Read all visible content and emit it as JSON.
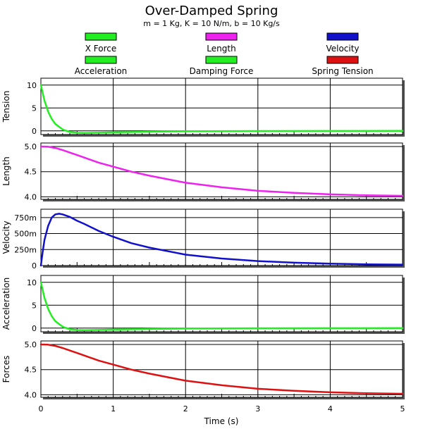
{
  "chart_data": {
    "type": "line",
    "title": "Over-Damped Spring",
    "subtitle": "m = 1 Kg, K = 10 N/m, b = 10 Kg/s",
    "xlabel": "Time (s)",
    "xlim": [
      0,
      5
    ],
    "x_ticks": [
      "0",
      "1",
      "2",
      "3",
      "4",
      "5"
    ],
    "grid": true,
    "legend_placement": "top",
    "legend": [
      {
        "name": "X Force",
        "color": "#22ee22"
      },
      {
        "name": "Length",
        "color": "#ee22ee"
      },
      {
        "name": "Velocity",
        "color": "#1111cc"
      },
      {
        "name": "Acceleration",
        "color": "#22ee22"
      },
      {
        "name": "Damping Force",
        "color": "#22ee22"
      },
      {
        "name": "Spring Tension",
        "color": "#dd1111"
      }
    ],
    "panels": [
      {
        "ylabel": "Tension",
        "ylim": [
          -0.8,
          11.5
        ],
        "y_ticks": [
          {
            "v": 10,
            "label": "10"
          },
          {
            "v": 5,
            "label": "5"
          },
          {
            "v": 0,
            "label": "0"
          }
        ],
        "color": "#22ee22",
        "x": [
          0,
          0.05,
          0.1,
          0.15,
          0.2,
          0.3,
          0.4,
          0.5,
          0.6,
          0.8,
          1.0,
          1.5,
          2.0,
          3.0,
          4.0,
          5.0
        ],
        "y": [
          10,
          6.6,
          4.2,
          2.6,
          1.5,
          0.3,
          -0.25,
          -0.42,
          -0.46,
          -0.4,
          -0.32,
          -0.18,
          -0.1,
          -0.03,
          -0.01,
          0
        ]
      },
      {
        "ylabel": "Length",
        "ylim": [
          3.95,
          5.07
        ],
        "y_ticks": [
          {
            "v": 5.0,
            "label": "5.0"
          },
          {
            "v": 4.5,
            "label": "4.5"
          },
          {
            "v": 4.0,
            "label": "4.0"
          }
        ],
        "color": "#ee22ee",
        "x": [
          0,
          0.1,
          0.2,
          0.3,
          0.4,
          0.5,
          0.6,
          0.8,
          1.0,
          1.25,
          1.5,
          1.75,
          2.0,
          2.5,
          3.0,
          3.5,
          4.0,
          4.5,
          5.0
        ],
        "y": [
          5.0,
          4.996,
          4.97,
          4.93,
          4.88,
          4.83,
          4.78,
          4.68,
          4.6,
          4.5,
          4.42,
          4.35,
          4.28,
          4.19,
          4.12,
          4.08,
          4.05,
          4.03,
          4.02
        ]
      },
      {
        "ylabel": "Velocity",
        "ylim": [
          0,
          0.88
        ],
        "y_ticks": [
          {
            "v": 0.75,
            "label": "750m"
          },
          {
            "v": 0.5,
            "label": "500m"
          },
          {
            "v": 0.25,
            "label": "250m"
          },
          {
            "v": 0,
            "label": "0"
          }
        ],
        "color": "#1111cc",
        "x": [
          0,
          0.02,
          0.05,
          0.1,
          0.15,
          0.2,
          0.25,
          0.3,
          0.4,
          0.5,
          0.6,
          0.8,
          1.0,
          1.25,
          1.5,
          2.0,
          2.5,
          3.0,
          3.5,
          4.0,
          4.5,
          5.0
        ],
        "y": [
          0,
          0.18,
          0.4,
          0.62,
          0.75,
          0.8,
          0.81,
          0.8,
          0.76,
          0.7,
          0.65,
          0.54,
          0.45,
          0.35,
          0.28,
          0.17,
          0.11,
          0.07,
          0.045,
          0.03,
          0.02,
          0.015
        ]
      },
      {
        "ylabel": "Acceleration",
        "ylim": [
          -0.8,
          11.5
        ],
        "y_ticks": [
          {
            "v": 10,
            "label": "10"
          },
          {
            "v": 5,
            "label": "5"
          },
          {
            "v": 0,
            "label": "0"
          }
        ],
        "color": "#22ee22",
        "x": [
          0,
          0.05,
          0.1,
          0.15,
          0.2,
          0.3,
          0.4,
          0.5,
          0.6,
          0.8,
          1.0,
          1.5,
          2.0,
          3.0,
          4.0,
          5.0
        ],
        "y": [
          10,
          6.6,
          4.2,
          2.6,
          1.5,
          0.3,
          -0.25,
          -0.42,
          -0.46,
          -0.4,
          -0.32,
          -0.18,
          -0.1,
          -0.03,
          -0.01,
          0
        ]
      },
      {
        "ylabel": "Forces",
        "ylim": [
          3.95,
          5.07
        ],
        "y_ticks": [
          {
            "v": 5.0,
            "label": "5.0"
          },
          {
            "v": 4.5,
            "label": "4.5"
          },
          {
            "v": 4.0,
            "label": "4.0"
          }
        ],
        "color": "#dd1111",
        "x": [
          0,
          0.1,
          0.2,
          0.3,
          0.4,
          0.5,
          0.6,
          0.8,
          1.0,
          1.25,
          1.5,
          1.75,
          2.0,
          2.5,
          3.0,
          3.5,
          4.0,
          4.5,
          5.0
        ],
        "y": [
          5.0,
          4.996,
          4.97,
          4.93,
          4.88,
          4.83,
          4.78,
          4.68,
          4.6,
          4.5,
          4.42,
          4.35,
          4.28,
          4.19,
          4.12,
          4.08,
          4.05,
          4.03,
          4.02
        ]
      }
    ]
  }
}
